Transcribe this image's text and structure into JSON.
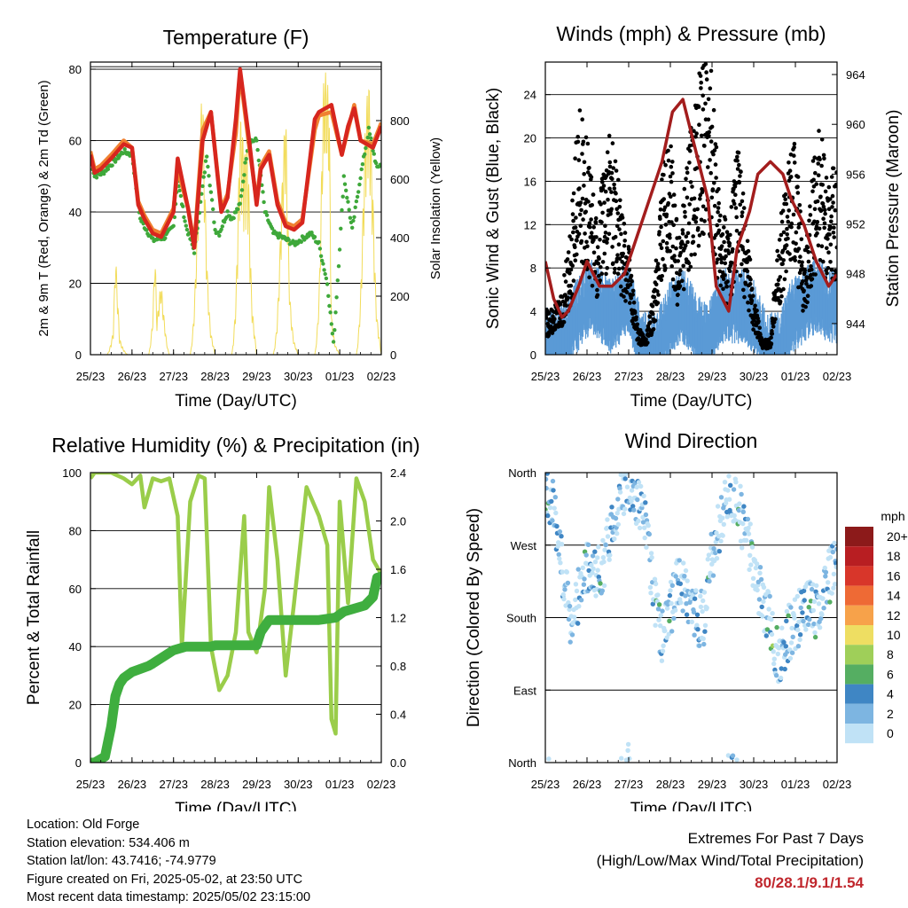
{
  "footer": {
    "location": "Location: Old Forge",
    "elevation": "Station elevation: 534.406 m",
    "latlon": "Station lat/lon: 43.7416; -74.9779",
    "created": "Figure created on Fri, 2025-05-02, at 23:50 UTC",
    "latest": "Most recent data timestamp: 2025/05/02 23:15:00"
  },
  "extremes": {
    "title": "Extremes For Past 7 Days",
    "subtitle": "(High/Low/Max Wind/Total Precipitation)",
    "values": "80/28.1/9.1/1.54",
    "color": "#c0272d"
  },
  "colors": {
    "temp_2m": "#d7261e",
    "temp_9m": "#f08030",
    "dewpoint": "#3ea83a",
    "solar": "#f2dc5a",
    "wind": "#5a9ad6",
    "gust": "#000000",
    "pressure": "#a31d1d",
    "rh": "#9acd4a",
    "precip": "#3fae3f"
  },
  "chart_data": [
    {
      "type": "line",
      "title": "Temperature (F)",
      "xlabel": "Time (Day/UTC)",
      "ylabel": "2m & 9m T (Red, Orange) & 2m Td (Green)",
      "ylabel_right": "Solar Insolation (Yellow)",
      "xticks": [
        "25/23",
        "26/23",
        "27/23",
        "28/23",
        "29/23",
        "30/23",
        "01/23",
        "02/23"
      ],
      "ylim": [
        0,
        82
      ],
      "yticks": [
        0,
        20,
        40,
        60,
        80
      ],
      "ylim_right": [
        0,
        1000
      ],
      "yticks_right": [
        0,
        200,
        400,
        600,
        800
      ],
      "grid": true,
      "x_unit": "days since 25/23",
      "series": [
        {
          "name": "2m T",
          "x": [
            0,
            0.1,
            0.25,
            0.5,
            0.8,
            1.0,
            1.15,
            1.3,
            1.5,
            1.7,
            2.0,
            2.1,
            2.35,
            2.5,
            2.7,
            2.9,
            3.15,
            3.3,
            3.5,
            3.6,
            3.8,
            4.0,
            4.1,
            4.3,
            4.5,
            4.7,
            4.9,
            5.1,
            5.4,
            5.5,
            5.8,
            6.05,
            6.2,
            6.35,
            6.5,
            6.8,
            7.0
          ],
          "y": [
            56,
            51,
            52,
            55,
            59,
            58,
            42,
            38,
            34,
            33,
            40,
            55,
            41,
            30,
            60,
            68,
            40,
            44,
            66,
            80,
            62,
            42,
            52,
            56,
            42,
            36,
            35,
            37,
            66,
            68,
            70,
            56,
            64,
            69,
            60,
            58,
            64
          ]
        },
        {
          "name": "9m T",
          "x": [
            0,
            0.1,
            0.25,
            0.5,
            0.8,
            1.0,
            1.15,
            1.3,
            1.5,
            1.7,
            2.0,
            2.1,
            2.35,
            2.5,
            2.7,
            2.9,
            3.15,
            3.3,
            3.5,
            3.6,
            3.8,
            4.0,
            4.1,
            4.3,
            4.5,
            4.7,
            4.9,
            5.1,
            5.4,
            5.5,
            5.8,
            6.05,
            6.2,
            6.35,
            6.5,
            6.8,
            7.0
          ],
          "y": [
            57,
            52,
            53,
            56,
            60,
            58,
            43,
            39,
            35,
            34,
            41,
            52,
            41,
            31,
            63,
            68,
            41,
            45,
            62,
            79,
            60,
            43,
            53,
            57,
            43,
            37,
            36,
            38,
            63,
            67,
            68,
            56,
            63,
            70,
            60,
            59,
            65
          ]
        },
        {
          "name": "2m Td",
          "x": [
            0,
            0.1,
            0.3,
            0.8,
            1.0,
            1.2,
            1.5,
            1.8,
            2.0,
            2.1,
            2.3,
            2.5,
            2.8,
            3.0,
            3.1,
            3.3,
            3.4,
            3.6,
            3.8,
            4.0,
            4.2,
            4.4,
            4.6,
            4.9,
            5.3,
            5.5,
            5.7,
            5.85,
            6.0,
            6.1,
            6.3,
            6.5,
            6.7,
            6.9,
            7.0
          ],
          "y": [
            55,
            50,
            51,
            57,
            56,
            38,
            32,
            33,
            36,
            49,
            36,
            29,
            56,
            35,
            34,
            40,
            38,
            42,
            60,
            60,
            40,
            34,
            33,
            31,
            34,
            31,
            20,
            3,
            30,
            50,
            35,
            50,
            63,
            52,
            54
          ]
        },
        {
          "name": "Solar Insolation",
          "axis": "right",
          "x": [
            0,
            0.4,
            0.55,
            0.6,
            0.7,
            0.75,
            0.9,
            1.4,
            1.5,
            1.55,
            1.6,
            1.7,
            1.9,
            2.4,
            2.5,
            2.6,
            2.7,
            2.8,
            3.0,
            3.4,
            3.5,
            3.6,
            3.7,
            3.8,
            4.0,
            4.4,
            4.5,
            4.6,
            4.7,
            4.8,
            5.0,
            5.4,
            5.5,
            5.6,
            5.75,
            5.8,
            6.0,
            6.4,
            6.5,
            6.6,
            6.7,
            6.8,
            7.0
          ],
          "y": [
            0,
            0,
            100,
            370,
            60,
            40,
            0,
            0,
            200,
            430,
            120,
            260,
            0,
            0,
            250,
            650,
            960,
            500,
            0,
            0,
            300,
            850,
            700,
            990,
            0,
            0,
            200,
            560,
            880,
            300,
            0,
            0,
            300,
            950,
            990,
            200,
            0,
            0,
            300,
            760,
            980,
            820,
            0
          ]
        }
      ]
    },
    {
      "type": "scatter",
      "title": "Winds (mph) & Pressure (mb)",
      "xlabel": "Time (Day/UTC)",
      "ylabel": "Sonic Wind & Gust (Blue, Black)",
      "ylabel_right": "Station Pressure (Maroon)",
      "xticks": [
        "25/23",
        "26/23",
        "27/23",
        "28/23",
        "29/23",
        "30/23",
        "01/23",
        "02/23"
      ],
      "ylim": [
        0,
        27
      ],
      "yticks": [
        0,
        4,
        8,
        12,
        16,
        20,
        24
      ],
      "ylim_right": [
        941.5,
        965
      ],
      "yticks_right": [
        944,
        948,
        952,
        956,
        960,
        964
      ],
      "grid": true,
      "x_unit": "days since 25/23",
      "series": [
        {
          "name": "Sonic Wind",
          "x": [
            0,
            0.3,
            0.6,
            0.9,
            1.1,
            1.3,
            1.6,
            1.8,
            2.0,
            2.3,
            2.6,
            2.8,
            3.0,
            3.3,
            3.6,
            3.9,
            4.2,
            4.5,
            4.8,
            5.0,
            5.3,
            5.6,
            5.9,
            6.2,
            6.5,
            6.8,
            7.0
          ],
          "y": [
            1.5,
            1.5,
            3,
            5,
            6,
            5,
            4,
            5,
            6,
            1,
            1,
            2,
            4,
            5,
            3,
            1.5,
            5,
            5,
            5,
            4,
            1,
            1,
            4,
            5,
            6,
            5,
            5
          ]
        },
        {
          "name": "Gust",
          "x": [
            0,
            0.2,
            0.4,
            0.6,
            0.8,
            1.0,
            1.2,
            1.4,
            1.6,
            1.8,
            2.0,
            2.2,
            2.4,
            2.6,
            2.8,
            3.0,
            3.2,
            3.4,
            3.6,
            3.8,
            4.0,
            4.2,
            4.4,
            4.6,
            4.8,
            5.0,
            5.2,
            5.4,
            5.6,
            5.8,
            6.0,
            6.2,
            6.4,
            6.6,
            6.8,
            7.0
          ],
          "y": [
            3,
            3,
            4,
            8,
            16,
            14,
            9,
            12,
            15,
            10,
            7,
            2,
            1,
            4,
            12,
            14,
            7,
            13,
            16,
            20,
            18,
            10,
            8,
            14,
            9,
            4,
            1,
            1,
            8,
            12,
            14,
            6,
            12,
            15,
            11,
            13
          ]
        },
        {
          "name": "Station Pressure",
          "axis": "right",
          "x": [
            0,
            0.2,
            0.4,
            0.55,
            0.8,
            1.0,
            1.3,
            1.6,
            1.9,
            2.2,
            2.5,
            2.8,
            3.05,
            3.3,
            3.6,
            3.9,
            4.1,
            4.4,
            4.6,
            4.9,
            5.1,
            5.4,
            5.7,
            5.9,
            6.2,
            6.5,
            6.8,
            7.0
          ],
          "y": [
            949,
            946,
            944.5,
            945,
            947,
            949,
            947,
            947,
            948,
            951,
            954,
            957,
            961,
            962,
            958,
            954,
            947,
            945,
            950,
            953,
            956,
            957,
            956,
            954,
            952,
            949,
            947,
            948
          ]
        }
      ]
    },
    {
      "type": "line",
      "title": "Relative Humidity (%) & Precipitation (in)",
      "xlabel": "Time (Day/UTC)",
      "ylabel": "Percent & Total Rainfall",
      "xticks": [
        "25/23",
        "26/23",
        "27/23",
        "28/23",
        "29/23",
        "30/23",
        "01/23",
        "02/23"
      ],
      "ylim": [
        0,
        100
      ],
      "yticks": [
        0,
        20,
        40,
        60,
        80,
        100
      ],
      "ylim_right": [
        0,
        2.4
      ],
      "yticks_right": [
        "0.0",
        "0.4",
        "0.8",
        "1.2",
        "1.6",
        "2.0",
        "2.4"
      ],
      "grid": true,
      "x_unit": "days since 25/23",
      "series": [
        {
          "name": "Relative Humidity",
          "x": [
            0,
            0.1,
            0.5,
            0.8,
            1.0,
            1.2,
            1.3,
            1.5,
            1.7,
            1.9,
            2.1,
            2.2,
            2.4,
            2.6,
            2.75,
            2.9,
            3.1,
            3.3,
            3.5,
            3.7,
            3.8,
            4.0,
            4.2,
            4.3,
            4.5,
            4.7,
            4.9,
            5.2,
            5.5,
            5.7,
            5.8,
            5.9,
            6.0,
            6.2,
            6.4,
            6.6,
            6.8,
            7.0
          ],
          "y": [
            98,
            100,
            100,
            98,
            96,
            99,
            88,
            98,
            97,
            98,
            85,
            40,
            90,
            99,
            98,
            40,
            25,
            30,
            45,
            85,
            45,
            38,
            60,
            95,
            70,
            30,
            55,
            95,
            85,
            75,
            15,
            10,
            90,
            55,
            98,
            90,
            70,
            65
          ]
        },
        {
          "name": "Total Precipitation",
          "axis": "right",
          "x": [
            0,
            0.1,
            0.35,
            0.5,
            0.6,
            0.7,
            0.8,
            1.0,
            1.4,
            1.5,
            2.0,
            2.3,
            2.5,
            2.9,
            3.0,
            3.4,
            4.0,
            4.1,
            4.3,
            4.6,
            4.8,
            5.0,
            5.5,
            5.9,
            6.1,
            6.3,
            6.6,
            6.8,
            6.9,
            7.0
          ],
          "y": [
            0,
            0,
            0.05,
            0.3,
            0.55,
            0.65,
            0.7,
            0.75,
            0.8,
            0.82,
            0.93,
            0.96,
            0.96,
            0.96,
            0.97,
            0.97,
            0.97,
            1.08,
            1.18,
            1.18,
            1.18,
            1.18,
            1.18,
            1.2,
            1.25,
            1.27,
            1.3,
            1.37,
            1.53,
            1.54
          ]
        }
      ]
    },
    {
      "type": "scatter",
      "title": "Wind Direction",
      "xlabel": "Time (Day/UTC)",
      "ylabel": "Direction (Colored By Speed)",
      "xticks": [
        "25/23",
        "26/23",
        "27/23",
        "28/23",
        "29/23",
        "30/23",
        "01/23",
        "02/23"
      ],
      "yticks": [
        "North",
        "East",
        "South",
        "West",
        "North"
      ],
      "ylim": [
        0,
        360
      ],
      "grid": true,
      "x_unit": "days since 25/23",
      "legend": {
        "title": "mph",
        "placement": "right",
        "labels": [
          "20+",
          "18",
          "16",
          "14",
          "12",
          "10",
          "8",
          "6",
          "4",
          "2",
          "0"
        ],
        "colors": [
          "#8c1a1a",
          "#b81e22",
          "#d8362a",
          "#ee6a35",
          "#f7a24a",
          "#eede62",
          "#9fcf59",
          "#55ae62",
          "#3f86c4",
          "#7db5e1",
          "#c0e2f6"
        ]
      },
      "series": [
        {
          "name": "Wind Direction",
          "x": [
            0,
            0.2,
            0.4,
            0.6,
            0.8,
            1.0,
            1.2,
            1.4,
            1.6,
            1.8,
            2.0,
            2.2,
            2.4,
            2.6,
            2.8,
            3.0,
            3.2,
            3.4,
            3.6,
            3.8,
            4.0,
            4.2,
            4.4,
            4.6,
            4.8,
            5.0,
            5.2,
            5.4,
            5.6,
            5.8,
            6.0,
            6.2,
            6.4,
            6.6,
            6.8,
            7.0
          ],
          "y": [
            340,
            320,
            240,
            180,
            210,
            240,
            230,
            250,
            300,
            330,
            350,
            330,
            300,
            200,
            160,
            190,
            230,
            210,
            180,
            180,
            260,
            300,
            340,
            330,
            280,
            250,
            200,
            180,
            120,
            160,
            170,
            190,
            190,
            190,
            230,
            260
          ]
        }
      ]
    }
  ]
}
